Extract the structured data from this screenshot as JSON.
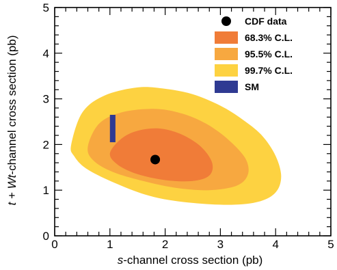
{
  "chart_data": {
    "type": "contour",
    "xlabel": {
      "prefix": "s",
      "rest": "-channel cross section (pb)"
    },
    "ylabel": {
      "p1": "t",
      "p2": " + ",
      "p3": "Wt",
      "p4": "-channel cross section (pb)"
    },
    "xlim": [
      0,
      5
    ],
    "ylim": [
      0,
      5
    ],
    "xticks": [
      0,
      1,
      2,
      3,
      4,
      5
    ],
    "yticks": [
      0,
      1,
      2,
      3,
      4,
      5
    ],
    "grid": false,
    "legend_position": "top-right",
    "legend": [
      {
        "label": "CDF data",
        "kind": "marker",
        "color": "#000000"
      },
      {
        "label": "68.3% C.L.",
        "kind": "fill",
        "color": "#f07c38"
      },
      {
        "label": "95.5% C.L.",
        "kind": "fill",
        "color": "#f7a840"
      },
      {
        "label": "99.7% C.L.",
        "kind": "fill",
        "color": "#fdd241"
      },
      {
        "label": "SM",
        "kind": "fill",
        "color": "#2f3a92"
      }
    ],
    "data_point": {
      "label": "CDF data",
      "x": 1.82,
      "y": 1.67
    },
    "regions": [
      {
        "label": "99.7% C.L.",
        "color": "#fdd241",
        "polygon": [
          [
            0.3,
            2.0
          ],
          [
            0.5,
            2.7
          ],
          [
            0.9,
            3.07
          ],
          [
            1.5,
            3.25
          ],
          [
            2.0,
            3.22
          ],
          [
            2.5,
            3.1
          ],
          [
            3.0,
            2.85
          ],
          [
            3.4,
            2.55
          ],
          [
            3.75,
            2.2
          ],
          [
            4.0,
            1.75
          ],
          [
            4.1,
            1.3
          ],
          [
            4.0,
            0.95
          ],
          [
            3.7,
            0.75
          ],
          [
            3.2,
            0.68
          ],
          [
            2.5,
            0.72
          ],
          [
            1.8,
            0.85
          ],
          [
            1.2,
            1.1
          ],
          [
            0.6,
            1.45
          ],
          [
            0.35,
            1.75
          ]
        ]
      },
      {
        "label": "95.5% C.L.",
        "color": "#f7a840",
        "polygon": [
          [
            0.6,
            1.95
          ],
          [
            0.8,
            2.45
          ],
          [
            1.2,
            2.7
          ],
          [
            1.8,
            2.78
          ],
          [
            2.3,
            2.68
          ],
          [
            2.75,
            2.45
          ],
          [
            3.15,
            2.1
          ],
          [
            3.45,
            1.7
          ],
          [
            3.5,
            1.35
          ],
          [
            3.3,
            1.1
          ],
          [
            2.8,
            1.0
          ],
          [
            2.2,
            1.05
          ],
          [
            1.6,
            1.2
          ],
          [
            1.05,
            1.4
          ],
          [
            0.7,
            1.65
          ]
        ]
      },
      {
        "label": "68.3% C.L.",
        "color": "#f07c38",
        "polygon": [
          [
            1.0,
            1.8
          ],
          [
            1.2,
            2.12
          ],
          [
            1.5,
            2.3
          ],
          [
            1.9,
            2.35
          ],
          [
            2.3,
            2.22
          ],
          [
            2.65,
            1.95
          ],
          [
            2.85,
            1.6
          ],
          [
            2.8,
            1.32
          ],
          [
            2.5,
            1.2
          ],
          [
            2.0,
            1.22
          ],
          [
            1.5,
            1.35
          ],
          [
            1.15,
            1.55
          ]
        ]
      }
    ],
    "sm_band": {
      "label": "SM",
      "color": "#2f3a92",
      "x": [
        1.0,
        1.1
      ],
      "y": [
        2.05,
        2.65
      ]
    }
  }
}
